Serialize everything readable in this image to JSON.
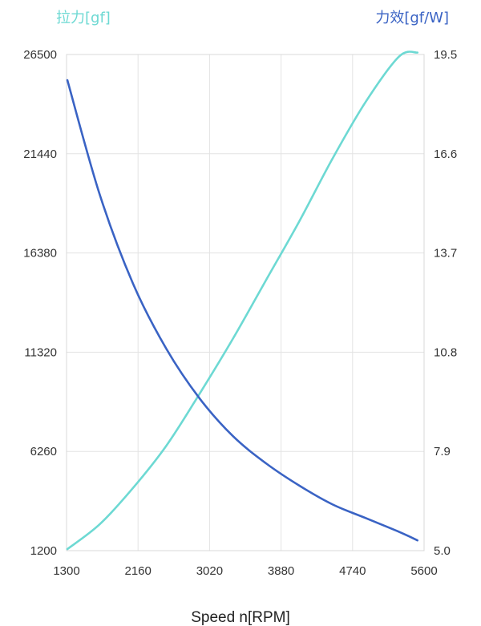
{
  "chart_data": {
    "type": "line",
    "xlabel": "Speed n[RPM]",
    "left_axis": {
      "label": "拉力[gf]",
      "color": "#6dd9d3",
      "ylim": [
        1200,
        26500
      ],
      "ticks": [
        "1200",
        "6260",
        "11320",
        "16380",
        "21440",
        "26500"
      ]
    },
    "right_axis": {
      "label": "力效[gf/W]",
      "color": "#3a63c4",
      "ylim": [
        5.0,
        19.5
      ],
      "ticks": [
        "5.0",
        "7.9",
        "10.8",
        "13.7",
        "16.6",
        "19.5"
      ]
    },
    "xlim": [
      1300,
      5600
    ],
    "x_ticks": [
      "1300",
      "2160",
      "3020",
      "3880",
      "4740",
      "5600"
    ],
    "grid": "vertical and horizontal",
    "series": [
      {
        "axis": "left",
        "color": "#6dd9d3",
        "x": [
          1310,
          1700,
          2100,
          2500,
          2900,
          3300,
          3700,
          4100,
          4500,
          4900,
          5300,
          5520
        ],
        "y": [
          1280,
          2550,
          4400,
          6550,
          9200,
          12000,
          15000,
          18000,
          21200,
          24100,
          26400,
          26600
        ]
      },
      {
        "axis": "right",
        "color": "#3a63c4",
        "x": [
          1310,
          1700,
          2100,
          2500,
          2900,
          3300,
          3700,
          4100,
          4500,
          4900,
          5300,
          5520
        ],
        "y": [
          18.75,
          15.4,
          12.8,
          10.9,
          9.45,
          8.35,
          7.55,
          6.9,
          6.35,
          5.95,
          5.55,
          5.3
        ]
      }
    ]
  }
}
